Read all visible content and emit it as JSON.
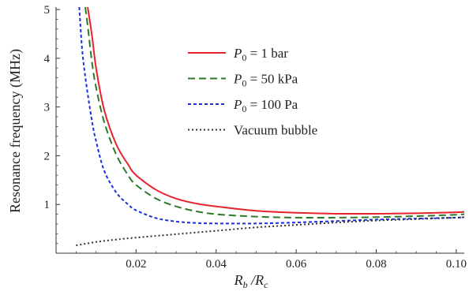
{
  "chart_data": {
    "type": "line",
    "title": "",
    "xlabel": {
      "main": "R",
      "sub1": "b",
      "mid": " /R",
      "sub2": "c"
    },
    "ylabel": "Resonance frequency (MHz)",
    "xlim": [
      0.0,
      0.102
    ],
    "ylim": [
      0.0,
      5.05
    ],
    "xticks": [
      0.02,
      0.04,
      0.06,
      0.08,
      0.1
    ],
    "xtick_labels": [
      "0.02",
      "0.04",
      "0.06",
      "0.08",
      "0.10"
    ],
    "yticks": [
      1,
      2,
      3,
      4,
      5
    ],
    "ytick_labels": [
      "1",
      "2",
      "3",
      "4",
      "5"
    ],
    "grid": false,
    "legend_position": "upper-center",
    "series": [
      {
        "name": "P₀ = 1 bar",
        "legend": {
          "symbol": "P",
          "sub": "0",
          "rest": " = 1 bar"
        },
        "color": "#e8222a",
        "style": "solid",
        "x": [
          0.0079,
          0.009,
          0.01,
          0.012,
          0.015,
          0.018,
          0.02,
          0.025,
          0.03,
          0.035,
          0.04,
          0.05,
          0.06,
          0.07,
          0.08,
          0.09,
          0.1,
          0.102
        ],
        "y": [
          5.05,
          4.45,
          3.8,
          2.95,
          2.24,
          1.82,
          1.6,
          1.3,
          1.12,
          1.02,
          0.96,
          0.87,
          0.83,
          0.81,
          0.81,
          0.82,
          0.84,
          0.85
        ]
      },
      {
        "name": "P₀ = 50 kPa",
        "legend": {
          "symbol": "P",
          "sub": "0",
          "rest": " = 50 kPa"
        },
        "color": "#2a7a2a",
        "style": "dashed",
        "x": [
          0.0073,
          0.008,
          0.009,
          0.01,
          0.012,
          0.015,
          0.018,
          0.02,
          0.025,
          0.03,
          0.035,
          0.04,
          0.05,
          0.06,
          0.07,
          0.08,
          0.09,
          0.1,
          0.102
        ],
        "y": [
          5.05,
          4.6,
          3.9,
          3.4,
          2.7,
          2.03,
          1.6,
          1.4,
          1.12,
          0.96,
          0.86,
          0.8,
          0.75,
          0.73,
          0.73,
          0.74,
          0.76,
          0.79,
          0.8
        ]
      },
      {
        "name": "P₀ = 100 Pa",
        "legend": {
          "symbol": "P",
          "sub": "0",
          "rest": " = 100 Pa"
        },
        "color": "#1a2ee0",
        "style": "dotted",
        "x": [
          0.0058,
          0.0065,
          0.0075,
          0.009,
          0.01,
          0.012,
          0.015,
          0.018,
          0.02,
          0.025,
          0.03,
          0.035,
          0.04,
          0.05,
          0.06,
          0.07,
          0.08,
          0.09,
          0.1,
          0.102
        ],
        "y": [
          5.05,
          4.2,
          3.5,
          2.7,
          2.3,
          1.7,
          1.25,
          1.0,
          0.88,
          0.72,
          0.65,
          0.62,
          0.61,
          0.61,
          0.63,
          0.66,
          0.69,
          0.71,
          0.73,
          0.74
        ]
      },
      {
        "name": "Vacuum bubble",
        "legend": {
          "symbol": "",
          "sub": "",
          "rest": "Vacuum bubble"
        },
        "color": "#333333",
        "style": "dotted-fine",
        "x": [
          0.005,
          0.01,
          0.015,
          0.02,
          0.03,
          0.04,
          0.05,
          0.06,
          0.07,
          0.08,
          0.09,
          0.1,
          0.102
        ],
        "y": [
          0.16,
          0.23,
          0.28,
          0.32,
          0.39,
          0.46,
          0.53,
          0.58,
          0.63,
          0.67,
          0.7,
          0.73,
          0.74
        ]
      }
    ]
  }
}
